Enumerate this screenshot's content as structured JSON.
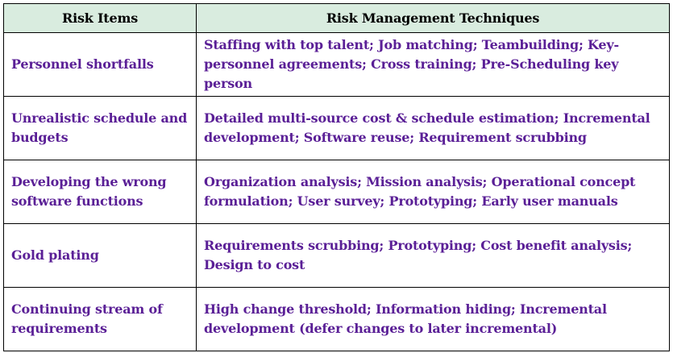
{
  "table": {
    "headers": [
      "Risk Items",
      "Risk Management Techniques"
    ],
    "rows": [
      {
        "item": "Personnel shortfalls",
        "techniques": "Staffing with top talent;  Job matching;  Teambuilding;  Key-personnel agreements;  Cross training;  Pre-Scheduling key person"
      },
      {
        "item": "Unrealistic schedule and budgets",
        "techniques": "Detailed multi-source cost & schedule estimation;  Incremental development;  Software reuse;  Requirement scrubbing"
      },
      {
        "item": "Developing the wrong software functions",
        "techniques": "Organization analysis;  Mission analysis;  Operational concept formulation;  User survey;  Prototyping;   Early user manuals"
      },
      {
        "item": "Gold plating",
        "techniques": "Requirements scrubbing;  Prototyping;  Cost benefit analysis;  Design to cost"
      },
      {
        "item": "Continuing stream of requirements",
        "techniques": "High change threshold;  Information hiding;  Incremental development (defer changes to later incremental)"
      }
    ]
  },
  "colors": {
    "header_bg": "#d9ecdf",
    "header_text": "#000000",
    "body_text": "#5a1f96",
    "border": "#000000"
  }
}
